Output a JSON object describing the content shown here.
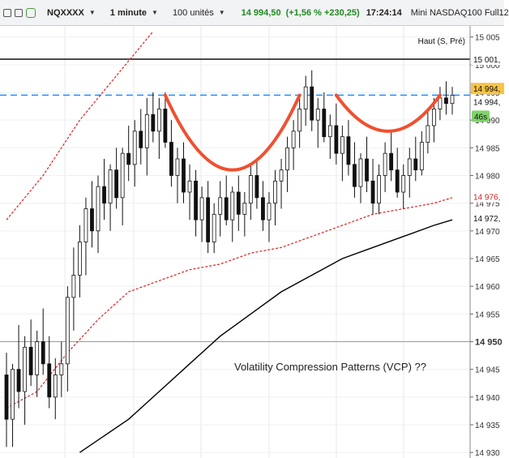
{
  "toolbar": {
    "symbol": "NQXXXX",
    "interval": "1 minute",
    "units": "100 unités",
    "price": "14 994,50",
    "change": "(+1,56 % +230,25)",
    "time": "17:24:14",
    "instrument": "Mini NASDAQ100 Full12",
    "status_color": "#3aa447"
  },
  "axis_labels": {
    "ticks": [
      "15 005",
      "15 000",
      "14 995",
      "14 990",
      "14 985",
      "14 980",
      "14 975",
      "14 970",
      "14 965",
      "14 960",
      "14 955",
      "14 950",
      "14 945",
      "14 940",
      "14 935",
      "14 930"
    ],
    "price_tag": "14 994,",
    "price_tag_color": "#f6c344",
    "current_tag": "14 994,",
    "countdown": "46s",
    "countdown_color": "#7fd36a",
    "red_tag": "14 976,",
    "black_tag": "14 972,",
    "high_tag": "15 001,",
    "bold_tick": "14 950"
  },
  "chart_data": {
    "type": "candlestick",
    "y_range": [
      14929,
      15007
    ],
    "annotation_text": "Volatility Compression Patterns (VCP)  ??",
    "high_line": {
      "label": "Haut (S, Pré)",
      "value": 15001
    },
    "dashed_level": 14994.5,
    "reference_level": 14950,
    "colors": {
      "up": "#ffffff",
      "down": "#111111",
      "dashed": "#1e90ff",
      "pattern": "#f05030",
      "ma_red": "#e02020",
      "ma_black": "#000000"
    },
    "candles": [
      [
        14944,
        14948,
        14931,
        14936
      ],
      [
        14936,
        14946,
        14931,
        14945
      ],
      [
        14945,
        14953,
        14938,
        14941
      ],
      [
        14941,
        14951,
        14935,
        14949
      ],
      [
        14949,
        14954,
        14942,
        14944
      ],
      [
        14944,
        14952,
        14940,
        14950
      ],
      [
        14950,
        14956,
        14944,
        14946
      ],
      [
        14946,
        14951,
        14938,
        14940
      ],
      [
        14940,
        14947,
        14936,
        14944
      ],
      [
        14944,
        14950,
        14940,
        14946
      ],
      [
        14946,
        14960,
        14941,
        14958
      ],
      [
        14958,
        14967,
        14952,
        14962
      ],
      [
        14962,
        14971,
        14958,
        14968
      ],
      [
        14968,
        14976,
        14962,
        14974
      ],
      [
        14974,
        14979,
        14967,
        14970
      ],
      [
        14970,
        14980,
        14966,
        14978
      ],
      [
        14978,
        14983,
        14972,
        14975
      ],
      [
        14975,
        14982,
        14970,
        14981
      ],
      [
        14981,
        14985,
        14974,
        14976
      ],
      [
        14976,
        14985,
        14971,
        14984
      ],
      [
        14984,
        14989,
        14979,
        14982
      ],
      [
        14982,
        14990,
        14978,
        14988
      ],
      [
        14988,
        14992,
        14982,
        14985
      ],
      [
        14985,
        14994,
        14980,
        14991
      ],
      [
        14991,
        14995,
        14986,
        14988
      ],
      [
        14988,
        14994,
        14983,
        14992
      ],
      [
        14992,
        14995,
        14985,
        14986
      ],
      [
        14986,
        14990,
        14978,
        14980
      ],
      [
        14980,
        14985,
        14975,
        14983
      ],
      [
        14983,
        14986,
        14975,
        14977
      ],
      [
        14977,
        14982,
        14972,
        14979
      ],
      [
        14979,
        14981,
        14969,
        14972
      ],
      [
        14972,
        14978,
        14968,
        14976
      ],
      [
        14976,
        14979,
        14966,
        14968
      ],
      [
        14968,
        14975,
        14966,
        14973
      ],
      [
        14973,
        14979,
        14969,
        14976
      ],
      [
        14976,
        14980,
        14971,
        14972
      ],
      [
        14972,
        14978,
        14968,
        14977
      ],
      [
        14977,
        14980,
        14970,
        14973
      ],
      [
        14973,
        14977,
        14969,
        14975
      ],
      [
        14975,
        14982,
        14972,
        14980
      ],
      [
        14980,
        14983,
        14974,
        14976
      ],
      [
        14976,
        14979,
        14970,
        14972
      ],
      [
        14972,
        14977,
        14968,
        14975
      ],
      [
        14975,
        14981,
        14971,
        14979
      ],
      [
        14979,
        14983,
        14974,
        14981
      ],
      [
        14981,
        14987,
        14977,
        14985
      ],
      [
        14985,
        14990,
        14981,
        14988
      ],
      [
        14988,
        14994,
        14985,
        14992
      ],
      [
        14992,
        14998,
        14989,
        14996
      ],
      [
        14996,
        14999,
        14988,
        14990
      ],
      [
        14990,
        14994,
        14985,
        14992
      ],
      [
        14992,
        14995,
        14986,
        14987
      ],
      [
        14987,
        14991,
        14983,
        14989
      ],
      [
        14989,
        14993,
        14982,
        14984
      ],
      [
        14984,
        14989,
        14979,
        14987
      ],
      [
        14987,
        14990,
        14980,
        14982
      ],
      [
        14982,
        14986,
        14976,
        14978
      ],
      [
        14978,
        14984,
        14975,
        14983
      ],
      [
        14983,
        14987,
        14977,
        14979
      ],
      [
        14979,
        14983,
        14973,
        14975
      ],
      [
        14975,
        14982,
        14973,
        14980
      ],
      [
        14980,
        14986,
        14977,
        14984
      ],
      [
        14984,
        14988,
        14979,
        14981
      ],
      [
        14981,
        14985,
        14976,
        14977
      ],
      [
        14977,
        14982,
        14974,
        14980
      ],
      [
        14980,
        14985,
        14976,
        14983
      ],
      [
        14983,
        14987,
        14979,
        14981
      ],
      [
        14981,
        14988,
        14980,
        14986
      ],
      [
        14986,
        14992,
        14984,
        14989
      ],
      [
        14989,
        14994,
        14986,
        14992
      ],
      [
        14992,
        14996,
        14990,
        14994
      ],
      [
        14994,
        14997,
        14991,
        14993
      ],
      [
        14993,
        14996,
        14991,
        14994.5
      ]
    ],
    "ma_red": [
      [
        0,
        14938
      ],
      [
        5,
        14941
      ],
      [
        10,
        14948
      ],
      [
        15,
        14954
      ],
      [
        20,
        14959
      ],
      [
        25,
        14961
      ],
      [
        30,
        14963
      ],
      [
        35,
        14964
      ],
      [
        40,
        14966
      ],
      [
        45,
        14967
      ],
      [
        50,
        14969
      ],
      [
        55,
        14971
      ],
      [
        60,
        14973
      ],
      [
        65,
        14974
      ],
      [
        70,
        14975
      ],
      [
        73,
        14976
      ]
    ],
    "ma_black": [
      [
        12,
        14930
      ],
      [
        20,
        14936
      ],
      [
        25,
        14941
      ],
      [
        30,
        14946
      ],
      [
        35,
        14951
      ],
      [
        40,
        14955
      ],
      [
        45,
        14959
      ],
      [
        50,
        14962
      ],
      [
        55,
        14965
      ],
      [
        60,
        14967
      ],
      [
        65,
        14969
      ],
      [
        70,
        14971
      ],
      [
        73,
        14972
      ]
    ],
    "ma_red_upper": [
      [
        0,
        14972
      ],
      [
        6,
        14980
      ],
      [
        12,
        14990
      ],
      [
        18,
        14998
      ],
      [
        24,
        15006
      ]
    ],
    "patterns": [
      {
        "from": 26,
        "to": 48,
        "bottom": 14981
      },
      {
        "from": 54,
        "to": 71,
        "bottom": 14988
      }
    ]
  }
}
